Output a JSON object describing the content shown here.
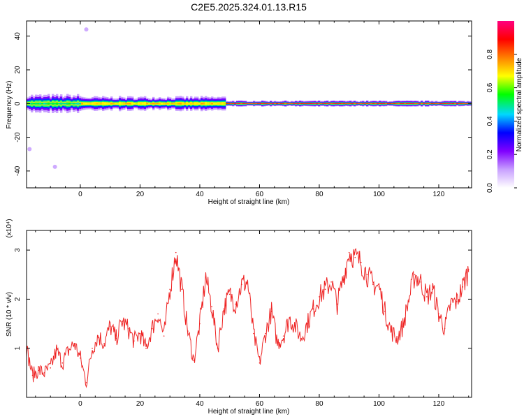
{
  "title": "C2E5.2025.324.01.13.R15",
  "chart_data": [
    {
      "type": "heatmap",
      "name": "spectrogram",
      "xlabel": "Height of straight line (km)",
      "ylabel": "Frequency (Hz)",
      "xlim": [
        -18,
        131
      ],
      "ylim": [
        -50,
        49
      ],
      "xticks": [
        0,
        20,
        40,
        60,
        80,
        100,
        120
      ],
      "yticks": [
        -40,
        -20,
        0,
        20,
        40
      ],
      "colorbar": {
        "label": "Normalized spectral amplitude",
        "range": [
          0,
          1
        ],
        "ticks": [
          "0.0",
          "0.2",
          "0.4",
          "0.6",
          "0.8"
        ],
        "tick_values": [
          0.0,
          0.2,
          0.4,
          0.6,
          0.8
        ],
        "stops": [
          "#ffffff",
          "#c8a0ff",
          "#8000ff",
          "#0000ff",
          "#00d8ff",
          "#00ff00",
          "#ffff00",
          "#ff8000",
          "#ff0000",
          "#ff0080"
        ]
      },
      "band": {
        "center_hz": 0,
        "segments": [
          {
            "x": [
              -18,
              0
            ],
            "half_width_hz": 4.5,
            "peak": 0.55
          },
          {
            "x": [
              0,
              48
            ],
            "half_width_hz": 3.5,
            "peak": 0.75
          },
          {
            "x": [
              48,
              131
            ],
            "half_width_hz": 1.5,
            "peak": 0.95
          }
        ]
      },
      "outliers": [
        {
          "x": -17,
          "hz": -27
        },
        {
          "x": -8.5,
          "hz": -37.5
        },
        {
          "x": 2,
          "hz": 44
        }
      ]
    },
    {
      "type": "line",
      "name": "snr",
      "xlabel": "Height of straight line (km)",
      "ylabel": "SNR (10 * v/v)",
      "y_multiplier": "(x10⁴)",
      "xlim": [
        -18,
        131
      ],
      "ylim": [
        0,
        3.4
      ],
      "xticks": [
        0,
        20,
        40,
        60,
        80,
        100,
        120
      ],
      "yticks": [
        1,
        2,
        3
      ],
      "color": "#ee2222",
      "x": [
        -18,
        -16,
        -14,
        -12,
        -10,
        -8,
        -6,
        -4,
        -2,
        0,
        2,
        4,
        6,
        8,
        10,
        12,
        14,
        16,
        18,
        20,
        22,
        24,
        26,
        28,
        30,
        32,
        34,
        36,
        38,
        40,
        42,
        44,
        46,
        48,
        50,
        52,
        54,
        56,
        58,
        60,
        62,
        64,
        66,
        68,
        70,
        72,
        74,
        76,
        78,
        80,
        82,
        84,
        86,
        88,
        90,
        92,
        94,
        96,
        98,
        100,
        102,
        104,
        106,
        108,
        110,
        112,
        114,
        116,
        118,
        120,
        122,
        124,
        126,
        128,
        130
      ],
      "values": [
        1.0,
        0.45,
        0.55,
        0.5,
        0.6,
        0.95,
        0.7,
        0.95,
        1.1,
        0.8,
        0.3,
        1.0,
        1.25,
        1.1,
        1.45,
        1.2,
        1.55,
        1.4,
        1.15,
        1.3,
        1.0,
        1.4,
        1.7,
        1.25,
        2.2,
        2.95,
        2.2,
        1.35,
        0.75,
        1.5,
        2.45,
        1.85,
        1.0,
        1.8,
        2.1,
        1.9,
        2.3,
        2.35,
        1.3,
        0.7,
        1.3,
        1.75,
        1.1,
        1.25,
        1.6,
        1.45,
        1.2,
        1.5,
        1.8,
        2.05,
        2.2,
        2.35,
        1.9,
        2.4,
        2.95,
        2.85,
        2.75,
        2.5,
        2.3,
        2.25,
        1.75,
        1.35,
        1.2,
        1.45,
        2.0,
        2.5,
        2.35,
        2.05,
        2.2,
        1.7,
        1.4,
        1.9,
        1.95,
        2.25,
        2.6
      ]
    }
  ]
}
